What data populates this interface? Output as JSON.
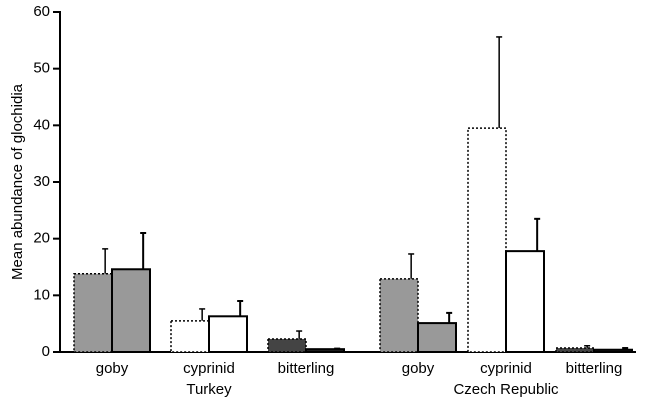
{
  "chart_data": {
    "type": "bar",
    "y_label": "Mean abundance of glochidia",
    "categories": [
      "goby",
      "cyprinid",
      "bitterling",
      "goby",
      "cyprinid",
      "bitterling"
    ],
    "groups": [
      {
        "name": "Turkey",
        "size": 3
      },
      {
        "name": "Czech Republic",
        "size": 3
      }
    ],
    "series": [
      {
        "line_style": "dotted",
        "colors": [
          "#999999",
          "#ffffff",
          "#444444",
          "#999999",
          "#ffffff",
          "#444444"
        ],
        "values": [
          13.8,
          5.5,
          2.3,
          12.9,
          39.5,
          0.7
        ],
        "errors": [
          4.4,
          2.1,
          1.4,
          4.4,
          16.1,
          0.4
        ]
      },
      {
        "line_style": "solid",
        "colors": [
          "#999999",
          "#ffffff",
          "#222222",
          "#999999",
          "#ffffff",
          "#222222"
        ],
        "values": [
          14.6,
          6.3,
          0.5,
          5.1,
          17.8,
          0.4
        ],
        "errors": [
          6.4,
          2.7,
          0.1,
          1.8,
          5.7,
          0.3
        ]
      }
    ],
    "ylim": [
      0,
      60
    ],
    "yticks": [
      0,
      10,
      20,
      30,
      40,
      50,
      60
    ]
  }
}
